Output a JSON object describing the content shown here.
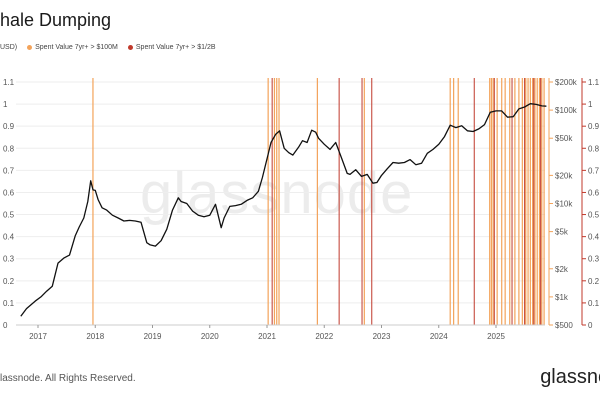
{
  "header": {
    "title": "hale Dumping"
  },
  "legend": {
    "price_label": "USD)",
    "orange_label": "Spent Value 7yr+ > $100M",
    "red_label": "Spent Value 7yr+ > $1/2B"
  },
  "watermark": "glassnode",
  "footer": {
    "copyright": "lassnode. All Rights Reserved.",
    "brand": "glassnc"
  },
  "colors": {
    "orange": "#f3a35a",
    "red": "#c0392b",
    "line": "#111111",
    "grid": "#eeeeee"
  },
  "chart_data": {
    "type": "line",
    "title": "hale Dumping",
    "x_ticks": [
      "2017",
      "2018",
      "2019",
      "2020",
      "2021",
      "2022",
      "2023",
      "2024",
      "2025"
    ],
    "x_range": [
      2016.7,
      2025.9
    ],
    "left_axis": {
      "ticks": [
        0,
        0.1,
        0.2,
        0.3,
        0.4,
        0.5,
        0.6,
        0.7,
        0.8,
        0.9,
        1,
        1.1
      ],
      "tick_labels": [
        "0",
        "0.1",
        "0.2",
        "0.3",
        "0.4",
        "0.5",
        "0.6",
        "0.7",
        "0.8",
        "0.9",
        "1",
        "1.1"
      ],
      "range": [
        0,
        1.1
      ]
    },
    "price_axis": {
      "scale": "log",
      "ticks": [
        500,
        1000,
        2000,
        5000,
        10000,
        20000,
        50000,
        100000,
        200000
      ],
      "tick_labels": [
        "$500",
        "$1k",
        "$2k",
        "$5k",
        "$10k",
        "$20k",
        "$50k",
        "$100k",
        "$200k"
      ],
      "range": [
        500,
        200000
      ]
    },
    "right_axis": {
      "ticks": [
        0,
        0.1,
        0.2,
        0.3,
        0.4,
        0.5,
        0.6,
        0.7,
        0.8,
        0.9,
        1,
        1.1
      ],
      "tick_labels": [
        "0",
        "0.1",
        "0.2",
        "0.3",
        "0.4",
        "0.5",
        "0.6",
        "0.7",
        "0.8",
        "0.9",
        "1",
        "1.1"
      ],
      "range": [
        0,
        1.1
      ]
    },
    "grid": true,
    "series": [
      {
        "name": "USD)",
        "x": [
          2016.7,
          2016.8,
          2016.95,
          2017.05,
          2017.15,
          2017.25,
          2017.35,
          2017.45,
          2017.55,
          2017.65,
          2017.72,
          2017.8,
          2017.87,
          2017.92,
          2017.96,
          2018.0,
          2018.05,
          2018.12,
          2018.2,
          2018.3,
          2018.4,
          2018.5,
          2018.6,
          2018.7,
          2018.8,
          2018.9,
          2018.96,
          2019.05,
          2019.15,
          2019.25,
          2019.35,
          2019.45,
          2019.5,
          2019.6,
          2019.7,
          2019.8,
          2019.9,
          2020.0,
          2020.1,
          2020.2,
          2020.25,
          2020.35,
          2020.45,
          2020.55,
          2020.65,
          2020.75,
          2020.85,
          2020.92,
          2021.0,
          2021.07,
          2021.15,
          2021.22,
          2021.3,
          2021.38,
          2021.45,
          2021.55,
          2021.62,
          2021.7,
          2021.78,
          2021.85,
          2021.9,
          2022.0,
          2022.1,
          2022.2,
          2022.3,
          2022.4,
          2022.45,
          2022.55,
          2022.65,
          2022.75,
          2022.85,
          2022.92,
          2023.0,
          2023.1,
          2023.2,
          2023.3,
          2023.4,
          2023.5,
          2023.6,
          2023.7,
          2023.8,
          2023.9,
          2024.0,
          2024.1,
          2024.2,
          2024.3,
          2024.4,
          2024.5,
          2024.6,
          2024.7,
          2024.8,
          2024.9,
          2025.0,
          2025.1,
          2025.2,
          2025.3,
          2025.4,
          2025.5,
          2025.6,
          2025.7,
          2025.8,
          2025.88
        ],
        "y": [
          620,
          750,
          900,
          1000,
          1150,
          1300,
          2300,
          2600,
          2800,
          4500,
          5600,
          7000,
          10500,
          17500,
          14000,
          13800,
          11000,
          9000,
          8500,
          7500,
          7000,
          6500,
          6600,
          6500,
          6300,
          3800,
          3600,
          3500,
          4000,
          5300,
          8500,
          11500,
          10500,
          10000,
          8300,
          7500,
          7200,
          7500,
          9800,
          5500,
          7000,
          9300,
          9500,
          9800,
          10800,
          11500,
          13500,
          19000,
          30000,
          45000,
          55000,
          60000,
          39000,
          35000,
          33000,
          40000,
          47000,
          45000,
          61000,
          58000,
          50000,
          43000,
          38000,
          45000,
          31000,
          21000,
          20500,
          23000,
          19500,
          20500,
          16500,
          16800,
          20000,
          23500,
          27500,
          27000,
          27500,
          29500,
          26000,
          27000,
          34500,
          38000,
          43000,
          52000,
          69000,
          65000,
          68000,
          60000,
          59000,
          63000,
          70000,
          95000,
          98000,
          98000,
          84000,
          85000,
          103000,
          108000,
          117000,
          115000,
          111000,
          110000
        ]
      }
    ],
    "orange_events": [
      2017.96,
      2021.02,
      2021.13,
      2021.17,
      2021.21,
      2021.88,
      2022.7,
      2024.2,
      2024.26,
      2024.34,
      2024.89,
      2024.92,
      2024.95,
      2025.02,
      2025.1,
      2025.16,
      2025.24,
      2025.33,
      2025.4,
      2025.46,
      2025.52,
      2025.56,
      2025.6,
      2025.64,
      2025.68,
      2025.72,
      2025.76,
      2025.8,
      2025.84
    ],
    "red_events": [
      2021.09,
      2022.26,
      2022.66,
      2022.83,
      2024.62,
      2024.97,
      2025.28,
      2025.5,
      2025.66,
      2025.78
    ]
  }
}
